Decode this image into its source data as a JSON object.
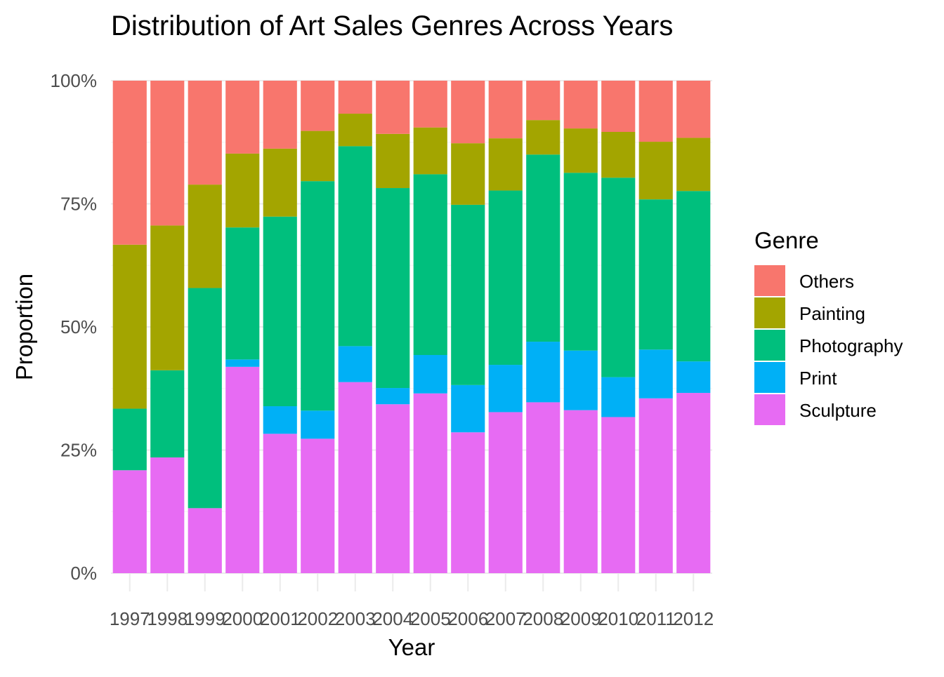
{
  "chart_data": {
    "type": "bar",
    "stacked": true,
    "position": "fill",
    "title": "Distribution of Art Sales Genres Across Years",
    "xlabel": "Year",
    "ylabel": "Proportion",
    "ylim": [
      0,
      1
    ],
    "y_ticks": [
      {
        "value": 0,
        "label": "0%"
      },
      {
        "value": 0.25,
        "label": "25%"
      },
      {
        "value": 0.5,
        "label": "50%"
      },
      {
        "value": 0.75,
        "label": "75%"
      },
      {
        "value": 1,
        "label": "100%"
      }
    ],
    "categories": [
      "1997",
      "1998",
      "1999",
      "2000",
      "2001",
      "2002",
      "2003",
      "2004",
      "2005",
      "2006",
      "2007",
      "2008",
      "2009",
      "2010",
      "2011",
      "2012"
    ],
    "grid": true,
    "legend": {
      "title": "Genre",
      "placement": "right"
    },
    "stack_order": [
      "Sculpture",
      "Print",
      "Photography",
      "Painting",
      "Others"
    ],
    "series": [
      {
        "name": "Others",
        "color": "#F8766D",
        "values": [
          0.333,
          0.294,
          0.211,
          0.148,
          0.138,
          0.102,
          0.067,
          0.108,
          0.095,
          0.127,
          0.117,
          0.08,
          0.097,
          0.104,
          0.124,
          0.116
        ]
      },
      {
        "name": "Painting",
        "color": "#A3A500",
        "values": [
          0.333,
          0.294,
          0.21,
          0.15,
          0.138,
          0.102,
          0.066,
          0.11,
          0.095,
          0.125,
          0.106,
          0.07,
          0.09,
          0.093,
          0.117,
          0.108
        ]
      },
      {
        "name": "Photography",
        "color": "#00BF7D",
        "values": [
          0.125,
          0.177,
          0.447,
          0.268,
          0.385,
          0.466,
          0.406,
          0.406,
          0.367,
          0.366,
          0.354,
          0.38,
          0.361,
          0.405,
          0.305,
          0.346
        ]
      },
      {
        "name": "Print",
        "color": "#00B0F6",
        "values": [
          0,
          0,
          0,
          0.015,
          0.056,
          0.057,
          0.073,
          0.033,
          0.078,
          0.096,
          0.096,
          0.123,
          0.121,
          0.081,
          0.099,
          0.064
        ]
      },
      {
        "name": "Sculpture",
        "color": "#E76BF3",
        "values": [
          0.209,
          0.235,
          0.132,
          0.419,
          0.283,
          0.273,
          0.388,
          0.343,
          0.365,
          0.286,
          0.327,
          0.347,
          0.331,
          0.317,
          0.355,
          0.366
        ]
      }
    ]
  }
}
